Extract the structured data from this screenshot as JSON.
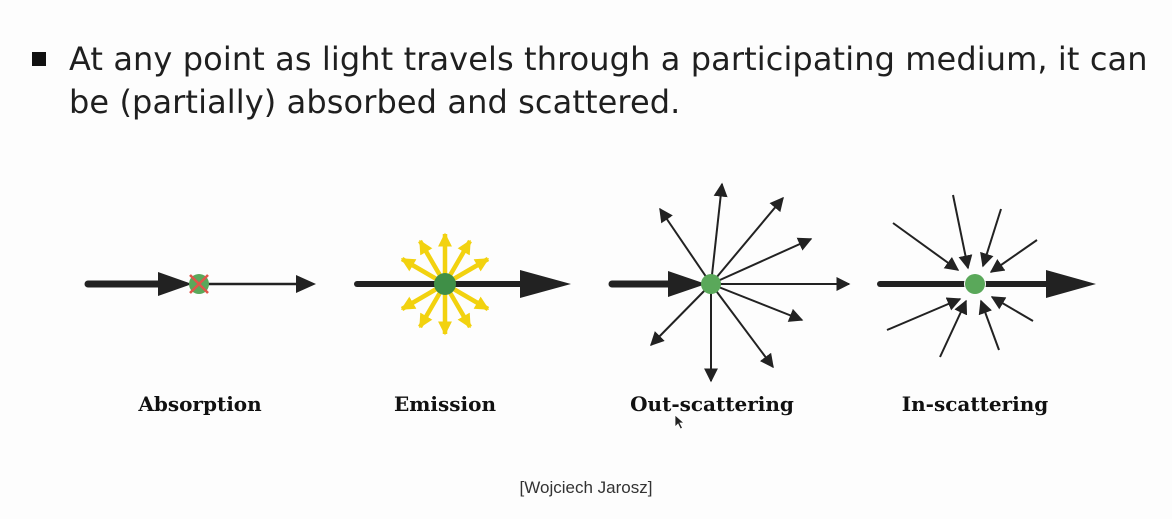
{
  "slide": {
    "bullet_text": "At any point as light travels through a participating medium, it can be (partially) absorbed and scattered.",
    "credit": "[Wojciech Jarosz]"
  },
  "panels": [
    {
      "id": "absorption",
      "label": "Absorption",
      "point_color": "#5aa85a",
      "mark_color": "#e0554a"
    },
    {
      "id": "emission",
      "label": "Emission",
      "point_color": "#3f8f47",
      "ray_color": "#f2d20f"
    },
    {
      "id": "out-scattering",
      "label": "Out-scattering",
      "point_color": "#5aa85a"
    },
    {
      "id": "in-scattering",
      "label": "In-scattering",
      "point_color": "#5aa85a"
    }
  ],
  "colors": {
    "arrow": "#222222",
    "text": "#1f1f1f",
    "background": "#fdfdfd"
  },
  "icons": {
    "bullet": "square-bullet-icon",
    "cursor": "mouse-pointer-icon"
  }
}
